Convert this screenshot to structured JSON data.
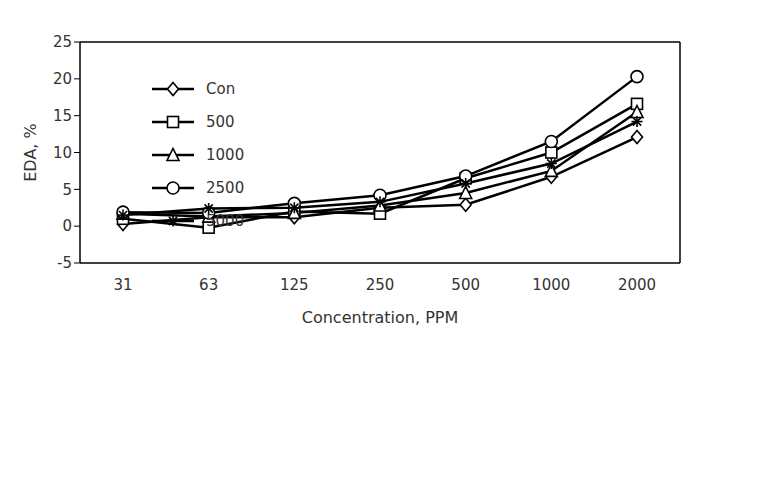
{
  "chart_data": {
    "type": "line",
    "x_label": "Concentration, PPM",
    "y_label": "EDA, %",
    "categories": [
      "31",
      "63",
      "125",
      "250",
      "500",
      "1000",
      "2000"
    ],
    "ylim": [
      -5,
      25
    ],
    "yticks": [
      -5,
      0,
      5,
      10,
      15,
      20,
      25
    ],
    "grid": false,
    "legend": "upper left",
    "series": [
      {
        "name": "Con",
        "color": "#000000",
        "marker": "diamond",
        "values": [
          0.3,
          1.2,
          1.2,
          2.5,
          2.9,
          6.7,
          12.1
        ]
      },
      {
        "name": "500",
        "color": "#000000",
        "marker": "square",
        "values": [
          1.0,
          -0.2,
          2.0,
          1.7,
          6.5,
          10.0,
          16.6
        ]
      },
      {
        "name": "1000",
        "color": "#000000",
        "marker": "triangle",
        "values": [
          1.7,
          1.3,
          1.8,
          2.8,
          4.5,
          7.5,
          15.5
        ]
      },
      {
        "name": "2500",
        "color": "#000000",
        "marker": "circle",
        "values": [
          1.9,
          1.8,
          3.1,
          4.2,
          6.8,
          11.5,
          20.3
        ]
      },
      {
        "name": "5000",
        "color": "#000000",
        "marker": "star",
        "values": [
          1.5,
          2.4,
          2.5,
          3.3,
          5.8,
          8.5,
          14.2
        ]
      }
    ]
  }
}
